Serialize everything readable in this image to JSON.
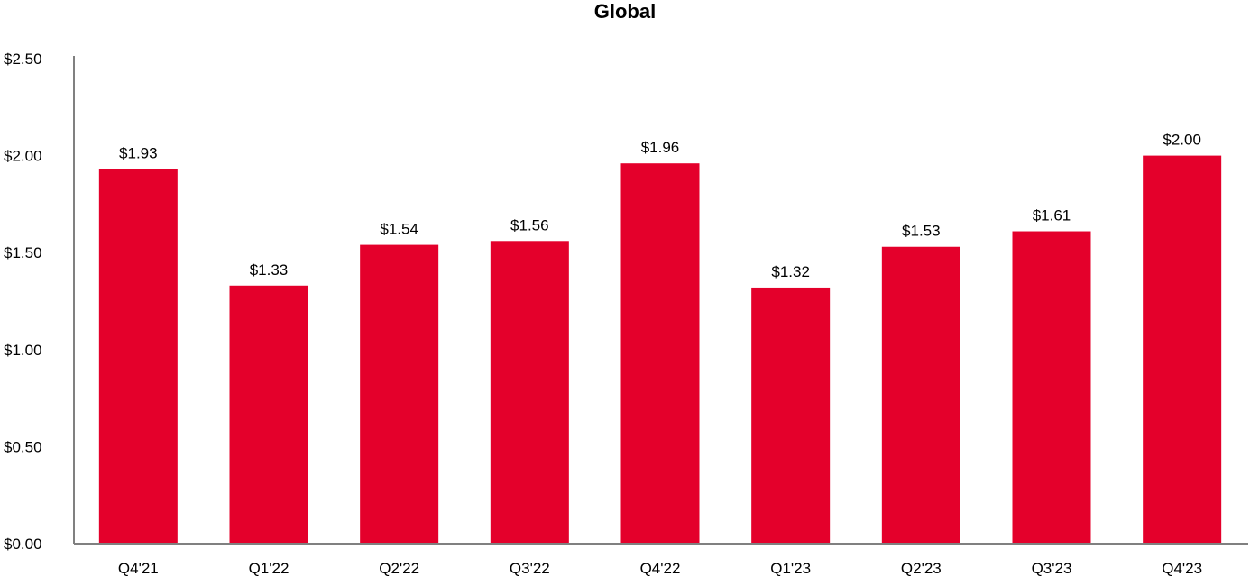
{
  "chart_data": {
    "type": "bar",
    "title": "Global",
    "xlabel": "",
    "ylabel": "",
    "categories": [
      "Q4'21",
      "Q1'22",
      "Q2'22",
      "Q3'22",
      "Q4'22",
      "Q1'23",
      "Q2'23",
      "Q3'23",
      "Q4'23"
    ],
    "values": [
      1.93,
      1.33,
      1.54,
      1.56,
      1.96,
      1.32,
      1.53,
      1.61,
      2.0
    ],
    "value_labels": [
      "$1.93",
      "$1.33",
      "$1.54",
      "$1.56",
      "$1.96",
      "$1.32",
      "$1.53",
      "$1.61",
      "$2.00"
    ],
    "ylim": [
      0,
      2.5
    ],
    "yticks": [
      0,
      0.5,
      1.0,
      1.5,
      2.0,
      2.5
    ],
    "ytick_labels": [
      "$0.00",
      "$0.50",
      "$1.00",
      "$1.50",
      "$2.00",
      "$2.50"
    ],
    "grid": false,
    "legend": "none",
    "bar_color": "#e4002b",
    "axis_color": "#808080"
  }
}
